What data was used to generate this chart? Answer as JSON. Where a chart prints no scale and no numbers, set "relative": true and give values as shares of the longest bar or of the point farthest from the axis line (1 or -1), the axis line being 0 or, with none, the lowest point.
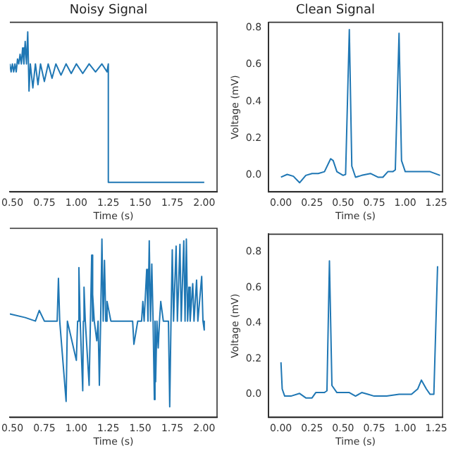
{
  "chart_data": [
    {
      "type": "line",
      "title": "Noisy Signal",
      "xlabel": "Time (s)",
      "relative": true,
      "tick_labels": "x",
      "color": "#1f77b4",
      "xlim": [
        0.48,
        2.1
      ],
      "xticks": [
        {
          "value": 0.5,
          "label": "0.50"
        },
        0.75,
        {
          "value": 1.0,
          "label": "1.00"
        },
        1.25,
        {
          "value": 1.5,
          "label": "1.50"
        },
        1.75,
        {
          "value": 2.0,
          "label": "2.00"
        }
      ],
      "x": [
        0.48,
        0.49,
        0.5,
        0.51,
        0.52,
        0.53,
        0.54,
        0.55,
        0.56,
        0.57,
        0.58,
        0.59,
        0.6,
        0.61,
        0.62,
        0.63,
        0.64,
        0.66,
        0.68,
        0.7,
        0.72,
        0.75,
        0.78,
        0.81,
        0.84,
        0.88,
        0.92,
        0.96,
        1.0,
        1.05,
        1.1,
        1.15,
        1.2,
        1.24,
        1.25,
        1.25,
        2.0
      ],
      "values": [
        0.8,
        0.75,
        0.8,
        0.75,
        0.8,
        0.75,
        0.83,
        0.8,
        0.86,
        0.8,
        0.9,
        0.8,
        0.94,
        0.8,
        1.0,
        0.63,
        0.8,
        0.65,
        0.8,
        0.67,
        0.8,
        0.69,
        0.8,
        0.71,
        0.8,
        0.73,
        0.8,
        0.74,
        0.8,
        0.74,
        0.8,
        0.75,
        0.8,
        0.75,
        0.8,
        0.06,
        0.06
      ]
    },
    {
      "type": "line",
      "title": "Clean Signal",
      "xlabel": "Time (s)",
      "ylabel": "Voltage (mV)",
      "color": "#1f77b4",
      "xlim": [
        -0.1,
        1.3
      ],
      "xticks": [
        {
          "value": 0,
          "label": "0.00"
        },
        0.25,
        {
          "value": 0.5,
          "label": "0.50"
        },
        0.75,
        {
          "value": 1.0,
          "label": "1.00"
        },
        1.25
      ],
      "ylim": [
        -0.09,
        0.83
      ],
      "yticks": [
        {
          "value": 0,
          "label": "0.0"
        },
        0.2,
        0.4,
        0.6,
        0.8
      ],
      "x": [
        0,
        0.05,
        0.1,
        0.15,
        0.2,
        0.25,
        0.3,
        0.35,
        0.4,
        0.42,
        0.45,
        0.5,
        0.52,
        0.55,
        0.57,
        0.6,
        0.65,
        0.72,
        0.78,
        0.82,
        0.86,
        0.9,
        0.92,
        0.95,
        0.97,
        1.0,
        1.1,
        1.2,
        1.28
      ],
      "values": [
        -0.01,
        0.005,
        -0.005,
        -0.04,
        0.0,
        0.01,
        0.01,
        0.02,
        0.09,
        0.08,
        0.02,
        0.0,
        0.005,
        0.79,
        0.05,
        -0.01,
        0.0,
        0.01,
        -0.01,
        -0.01,
        0.02,
        0.02,
        0.03,
        0.77,
        0.08,
        0.02,
        0.02,
        0.02,
        0.0
      ]
    },
    {
      "type": "line",
      "xlabel": "Time (s)",
      "relative": true,
      "tick_labels": "x",
      "color": "#1f77b4",
      "xlim": [
        0.48,
        2.1
      ],
      "xticks": [
        {
          "value": 0.5,
          "label": "0.50"
        },
        0.75,
        {
          "value": 1.0,
          "label": "1.00"
        },
        1.25,
        {
          "value": 1.5,
          "label": "1.50"
        },
        1.75,
        {
          "value": 2.0,
          "label": "2.00"
        }
      ],
      "x": [
        0.48,
        0.6,
        0.68,
        0.71,
        0.75,
        0.85,
        0.86,
        0.87,
        0.92,
        0.93,
        1.0,
        1.01,
        1.02,
        1.03,
        1.05,
        1.055,
        1.06,
        1.07,
        1.1,
        1.11,
        1.12,
        1.125,
        1.13,
        1.14,
        1.16,
        1.17,
        1.18,
        1.19,
        1.2,
        1.21,
        1.22,
        1.23,
        1.24,
        1.27,
        1.44,
        1.45,
        1.48,
        1.51,
        1.52,
        1.53,
        1.55,
        1.56,
        1.57,
        1.58,
        1.59,
        1.6,
        1.61,
        1.615,
        1.62,
        1.63,
        1.64,
        1.65,
        1.66,
        1.68,
        1.72,
        1.73,
        1.74,
        1.75,
        1.76,
        1.78,
        1.79,
        1.81,
        1.82,
        1.84,
        1.85,
        1.86,
        1.87,
        1.88,
        1.89,
        1.91,
        1.92,
        1.94,
        1.95,
        1.98,
        1.99,
        2.0
      ],
      "values": [
        0.58,
        0.56,
        0.54,
        0.6,
        0.54,
        0.54,
        0.78,
        0.54,
        0.09,
        0.54,
        0.32,
        0.54,
        0.84,
        0.54,
        0.15,
        0.54,
        0.73,
        0.54,
        0.18,
        0.54,
        0.91,
        0.54,
        0.69,
        0.54,
        0.43,
        0.54,
        0.18,
        0.54,
        1.0,
        0.54,
        0.88,
        0.54,
        0.65,
        0.54,
        0.54,
        0.41,
        0.54,
        0.54,
        0.65,
        0.54,
        0.83,
        0.54,
        0.99,
        0.54,
        0.86,
        0.54,
        0.1,
        0.54,
        0.2,
        0.54,
        0.39,
        0.54,
        0.65,
        0.54,
        0.54,
        0.06,
        0.54,
        0.94,
        0.54,
        0.96,
        0.54,
        0.97,
        0.54,
        0.99,
        0.54,
        1.0,
        0.54,
        0.73,
        0.54,
        0.75,
        0.54,
        0.77,
        0.54,
        0.79,
        0.54,
        0.49
      ]
    },
    {
      "type": "line",
      "xlabel": "Time (s)",
      "ylabel": "Voltage (mV)",
      "color": "#1f77b4",
      "xlim": [
        -0.1,
        1.3
      ],
      "xticks": [
        {
          "value": 0,
          "label": "0.00"
        },
        0.25,
        {
          "value": 0.5,
          "label": "0.50"
        },
        0.75,
        {
          "value": 1.0,
          "label": "1.00"
        },
        1.25
      ],
      "ylim": [
        -0.13,
        0.9
      ],
      "yticks": [
        {
          "value": 0,
          "label": "0.0"
        },
        0.2,
        0.4,
        0.6,
        0.8
      ],
      "x": [
        0,
        0.01,
        0.03,
        0.08,
        0.15,
        0.2,
        0.25,
        0.28,
        0.35,
        0.37,
        0.39,
        0.41,
        0.45,
        0.5,
        0.55,
        0.6,
        0.65,
        0.7,
        0.75,
        0.85,
        0.95,
        1.0,
        1.05,
        1.1,
        1.13,
        1.17,
        1.2,
        1.23,
        1.26
      ],
      "values": [
        0.18,
        0.03,
        -0.01,
        -0.01,
        0.005,
        -0.02,
        -0.02,
        0.01,
        0.01,
        0.02,
        0.75,
        0.05,
        0.01,
        0.01,
        0.01,
        -0.01,
        0.01,
        0.0,
        -0.01,
        -0.01,
        0.0,
        0.0,
        0.0,
        0.03,
        0.08,
        0.03,
        0.0,
        0.0,
        0.72
      ]
    }
  ]
}
